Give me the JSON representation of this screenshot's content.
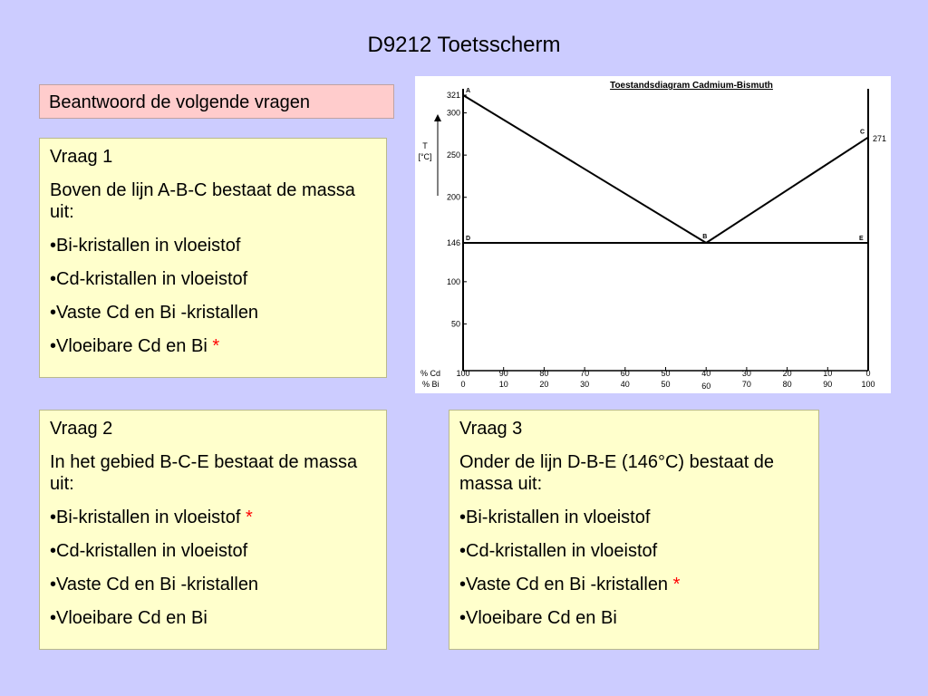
{
  "title": "D9212 Toetsscherm",
  "instruction": "Beantwoord de volgende vragen",
  "questions": [
    {
      "heading": "Vraag 1",
      "prompt": "Boven de lijn A-B-C bestaat de massa uit:",
      "options": [
        "•Bi-kristallen in vloeistof",
        "•Cd-kristallen in vloeistof",
        "•Vaste Cd en Bi -kristallen",
        "•Vloeibare Cd en Bi"
      ],
      "marked_option_index": 3,
      "mark": "*"
    },
    {
      "heading": "Vraag 2",
      "prompt": "In het gebied B-C-E bestaat de massa uit:",
      "options": [
        "•Bi-kristallen in vloeistof",
        "•Cd-kristallen in vloeistof",
        "•Vaste Cd en Bi -kristallen",
        "•Vloeibare Cd en Bi"
      ],
      "marked_option_index": 0,
      "mark": "*"
    },
    {
      "heading": "Vraag 3",
      "prompt": "Onder de lijn D-B-E (146°C) bestaat de massa uit:",
      "options": [
        "•Bi-kristallen in vloeistof",
        "•Cd-kristallen in vloeistof",
        "•Vaste Cd en Bi -kristallen",
        "•Vloeibare Cd en Bi"
      ],
      "marked_option_index": 2,
      "mark": "*"
    }
  ],
  "diagram": {
    "title": "Toestandsdiagram Cadmium-Bismuth",
    "y_axis_label_line1": "T",
    "y_axis_label_line2": "[°C]",
    "y_ticks": [
      "321",
      "300",
      "250",
      "200",
      "146",
      "100",
      "50"
    ],
    "y_tick_values": [
      321,
      300,
      250,
      200,
      146,
      100,
      50
    ],
    "right_label": "271",
    "cd_label": "% Cd",
    "bi_label": "% Bi",
    "cd_ticks": [
      "100",
      "90",
      "80",
      "70",
      "60",
      "50",
      "40",
      "30",
      "20",
      "10",
      "0"
    ],
    "bi_ticks": [
      "0",
      "10",
      "20",
      "30",
      "40",
      "50",
      "60",
      "70",
      "80",
      "90",
      "100"
    ],
    "point_labels": [
      "A",
      "B",
      "C",
      "D",
      "E"
    ],
    "points": {
      "A": {
        "bi": 0,
        "t": 321
      },
      "B": {
        "bi": 60,
        "t": 146
      },
      "C": {
        "bi": 100,
        "t": 271
      },
      "D": {
        "bi": 0,
        "t": 146
      },
      "E": {
        "bi": 100,
        "t": 146
      }
    },
    "line_color": "#000000"
  }
}
